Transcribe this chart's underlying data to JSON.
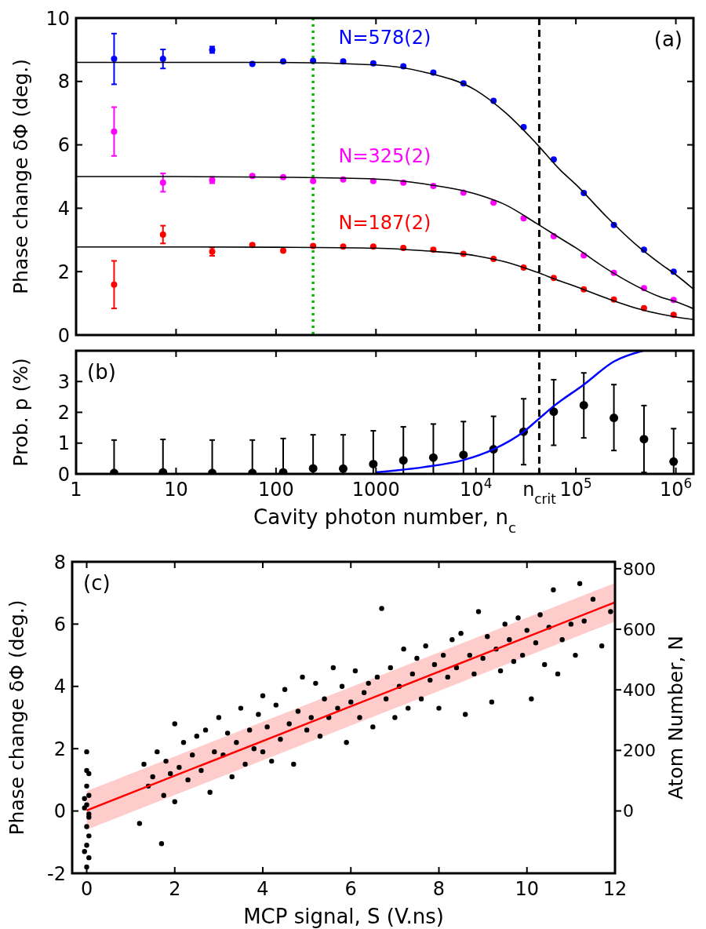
{
  "chart_data": [
    {
      "type": "scatter",
      "ylabel": "Phase change δΦ (deg.)",
      "annotations": [
        "(a)"
      ],
      "x": [
        2.4,
        7.4,
        23,
        58,
        118,
        235,
        470,
        940,
        1880,
        3750,
        7500,
        15000,
        30000,
        60000,
        120000,
        240000,
        480000,
        950000
      ],
      "xlim": [
        1,
        1500000
      ],
      "ylim": [
        0,
        10
      ],
      "log": "x",
      "xticks": [
        1,
        10,
        100,
        1000,
        10000,
        100000,
        1000000
      ],
      "yticks": [
        0,
        2,
        4,
        6,
        8,
        10
      ],
      "tick_labels": "y",
      "marker": "circle",
      "series": [
        {
          "name": "N=578(2)",
          "color": "#0000ff",
          "values": [
            8.71,
            8.71,
            9.0,
            8.55,
            8.63,
            8.65,
            8.63,
            8.57,
            8.48,
            8.28,
            7.94,
            7.39,
            6.56,
            5.54,
            4.48,
            3.47,
            2.69,
            2.0
          ],
          "errors": [
            0.8,
            0.3,
            0.1,
            null,
            null,
            null,
            null,
            null,
            null,
            null,
            null,
            null,
            null,
            null,
            null,
            null,
            null,
            null
          ]
        },
        {
          "name": "N=325(2)",
          "color": "#ff00ff",
          "values": [
            6.42,
            4.81,
            4.89,
            5.02,
            4.98,
            4.86,
            4.91,
            4.86,
            4.81,
            4.7,
            4.49,
            4.18,
            3.68,
            3.12,
            2.51,
            1.96,
            1.48,
            1.11
          ],
          "errors": [
            0.77,
            0.29,
            0.1,
            null,
            null,
            null,
            null,
            null,
            null,
            null,
            null,
            null,
            null,
            null,
            null,
            null,
            null,
            null
          ]
        },
        {
          "name": "N=187(2)",
          "color": "#ff0000",
          "values": [
            1.59,
            3.17,
            2.63,
            2.84,
            2.66,
            2.81,
            2.79,
            2.79,
            2.75,
            2.69,
            2.56,
            2.4,
            2.13,
            1.8,
            1.44,
            1.12,
            0.85,
            0.64
          ],
          "errors": [
            0.75,
            0.28,
            0.13,
            null,
            null,
            null,
            null,
            null,
            null,
            null,
            null,
            null,
            null,
            null,
            null,
            null,
            null,
            null
          ]
        },
        {
          "type": "line",
          "color": "#000000",
          "x": [
            1,
            10,
            100,
            1000,
            3000,
            10000,
            20000,
            40000,
            70000,
            100000,
            200000,
            400000,
            700000,
            1000000,
            1500000
          ],
          "marker": "none",
          "values": [
            8.6,
            8.6,
            8.6,
            8.52,
            8.3,
            7.72,
            7.0,
            6.05,
            5.2,
            4.75,
            3.75,
            2.85,
            2.25,
            1.9,
            1.45
          ]
        },
        {
          "type": "line",
          "color": "#000000",
          "x": [
            1,
            10,
            100,
            1000,
            3000,
            10000,
            20000,
            40000,
            70000,
            100000,
            200000,
            400000,
            700000,
            1000000,
            1500000
          ],
          "marker": "none",
          "values": [
            5.0,
            5.0,
            4.98,
            4.92,
            4.77,
            4.45,
            4.1,
            3.53,
            3.05,
            2.75,
            2.1,
            1.55,
            1.2,
            1.05,
            0.83
          ]
        },
        {
          "type": "line",
          "color": "#000000",
          "x": [
            1,
            10,
            100,
            1000,
            3000,
            10000,
            20000,
            40000,
            70000,
            100000,
            200000,
            400000,
            700000,
            1000000,
            1500000
          ],
          "marker": "none",
          "values": [
            2.78,
            2.78,
            2.77,
            2.74,
            2.66,
            2.5,
            2.3,
            1.99,
            1.7,
            1.53,
            1.17,
            0.85,
            0.66,
            0.57,
            0.49
          ]
        }
      ],
      "ref_lines": [
        {
          "axis": "x",
          "value": 235,
          "color": "#00bb00",
          "line_style": "dotted"
        },
        {
          "axis": "x",
          "value": 43000,
          "color": "#000000",
          "line_style": "dashed"
        }
      ]
    },
    {
      "type": "scatter",
      "ylabel": "Prob. p (%)",
      "xlabel": "Cavity photon number, n$_{c}$",
      "annotations": [
        "(b)"
      ],
      "x": [
        2.4,
        7.4,
        23,
        58,
        118,
        235,
        470,
        940,
        1880,
        3750,
        7500,
        15000,
        30000,
        60000,
        120000,
        240000,
        480000,
        950000
      ],
      "xlim": [
        1,
        1500000
      ],
      "ylim": [
        0,
        4
      ],
      "log": "x",
      "xticks": [
        1,
        10,
        100,
        1000,
        {
          "value": 10000,
          "label": "10$^{4}$"
        },
        {
          "value": 43000,
          "label": "n$_{crit}$"
        },
        {
          "value": 100000,
          "label": "10$^{5}$"
        },
        {
          "value": 1000000,
          "label": "10$^{6}$"
        }
      ],
      "yticks": [
        0,
        1,
        2,
        3
      ],
      "marker": "circle",
      "series": [
        {
          "color": "#000000",
          "values": [
            0.03,
            0.05,
            0.03,
            0.03,
            0.05,
            0.18,
            0.17,
            0.32,
            0.44,
            0.53,
            0.62,
            0.8,
            1.37,
            2.02,
            2.23,
            1.82,
            1.13,
            0.4
          ],
          "errors": [
            [
              0,
              1.1
            ],
            [
              0,
              1.12
            ],
            [
              0,
              1.1
            ],
            [
              0,
              1.1
            ],
            [
              0,
              1.15
            ],
            [
              0,
              1.27
            ],
            [
              0,
              1.27
            ],
            [
              0,
              1.4
            ],
            [
              0,
              1.53
            ],
            [
              0,
              1.62
            ],
            [
              0,
              1.7
            ],
            [
              0,
              1.87
            ],
            [
              0.3,
              2.44
            ],
            [
              0.93,
              3.06
            ],
            [
              1.17,
              3.28
            ],
            [
              0.76,
              2.9
            ],
            [
              0.05,
              2.22
            ],
            [
              0,
              1.47
            ]
          ]
        },
        {
          "type": "line",
          "marker": "none",
          "color": "#0000ff",
          "x": [
            1000,
            3000,
            7500,
            15000,
            30000,
            43000,
            60000,
            120000,
            240000,
            470000
          ],
          "values": [
            0.05,
            0.22,
            0.45,
            0.8,
            1.37,
            1.8,
            2.2,
            2.9,
            3.65,
            4.0
          ]
        }
      ],
      "ref_lines": [
        {
          "axis": "x",
          "value": 43000,
          "color": "#000000",
          "line_style": "dashed"
        }
      ]
    },
    {
      "type": "scatter",
      "ylabel": "Phase change δΦ (deg.)",
      "y2label": "Atom Number, N",
      "xlabel": "MCP signal, S (V.ns)",
      "annotations": [
        "(c)"
      ],
      "xlim": [
        -0.33,
        12
      ],
      "ylim": [
        -2,
        8
      ],
      "xticks": [
        0,
        2,
        4,
        6,
        8,
        10,
        12
      ],
      "yticks": [
        -2,
        0,
        2,
        4,
        6,
        8
      ],
      "y2lim": [
        -206,
        823
      ],
      "y2ticks": [
        0,
        200,
        400,
        600,
        800
      ],
      "marker": "circle",
      "series": [
        {
          "color": "#000000",
          "x": [
            0,
            0,
            0.05,
            0,
            0.05,
            0,
            -0.05,
            0.05,
            0,
            0.05,
            0,
            -0.05,
            0.05,
            0,
            -0.05,
            0.05,
            1.2,
            1.3,
            1.4,
            1.5,
            1.6,
            1.7,
            1.75,
            1.8,
            1.9,
            2.0,
            2.0,
            2.1,
            2.2,
            2.3,
            2.4,
            2.5,
            2.6,
            2.7,
            2.8,
            2.9,
            3.0,
            3.1,
            3.2,
            3.3,
            3.4,
            3.5,
            3.6,
            3.7,
            3.8,
            3.9,
            4.0,
            4.0,
            4.1,
            4.2,
            4.3,
            4.4,
            4.5,
            4.6,
            4.7,
            4.8,
            4.9,
            5.0,
            5.1,
            5.2,
            5.3,
            5.4,
            5.5,
            5.6,
            5.7,
            5.8,
            5.9,
            6.0,
            6.1,
            6.2,
            6.3,
            6.4,
            6.5,
            6.6,
            6.7,
            6.8,
            6.9,
            7.0,
            7.1,
            7.2,
            7.3,
            7.4,
            7.5,
            7.6,
            7.7,
            7.8,
            7.9,
            8.0,
            8.1,
            8.2,
            8.3,
            8.4,
            8.5,
            8.6,
            8.7,
            8.8,
            8.9,
            9.0,
            9.1,
            9.2,
            9.3,
            9.4,
            9.5,
            9.6,
            9.7,
            9.8,
            9.9,
            10.0,
            10.1,
            10.2,
            10.3,
            10.4,
            10.5,
            10.6,
            10.7,
            10.8,
            11.0,
            11.1,
            11.2,
            11.3,
            11.5,
            11.7,
            11.9
          ],
          "values": [
            1.9,
            1.3,
            1.2,
            0.8,
            0.5,
            0.2,
            0.1,
            -0.2,
            -0.5,
            -0.8,
            -1.1,
            -1.3,
            -1.5,
            -1.8,
            0.4,
            -0.1,
            -0.4,
            1.5,
            0.8,
            1.1,
            1.9,
            -1.05,
            0.5,
            1.6,
            1.2,
            2.8,
            0.3,
            1.4,
            2.2,
            1.0,
            1.8,
            2.4,
            1.3,
            2.6,
            0.6,
            1.9,
            3.0,
            1.8,
            2.5,
            1.1,
            2.2,
            3.3,
            1.5,
            2.6,
            2.0,
            3.1,
            3.7,
            1.9,
            2.7,
            1.6,
            3.4,
            2.3,
            3.9,
            2.8,
            1.5,
            3.2,
            4.3,
            2.6,
            3.0,
            4.1,
            2.4,
            3.6,
            3.0,
            4.6,
            3.3,
            4.0,
            2.2,
            3.5,
            4.5,
            3.0,
            3.8,
            4.1,
            2.7,
            4.3,
            6.5,
            3.6,
            4.6,
            3.0,
            4.0,
            5.2,
            3.3,
            4.4,
            4.9,
            3.6,
            5.3,
            4.2,
            4.7,
            3.3,
            5.0,
            4.3,
            5.5,
            4.6,
            5.7,
            3.1,
            5.0,
            4.4,
            6.4,
            4.9,
            5.6,
            3.5,
            5.2,
            4.5,
            6.0,
            5.5,
            4.8,
            6.2,
            5.0,
            5.8,
            3.6,
            5.4,
            6.3,
            4.7,
            5.9,
            7.1,
            4.4,
            5.5,
            6.0,
            5.0,
            7.3,
            6.1,
            6.8,
            5.3,
            6.4
          ]
        },
        {
          "type": "line",
          "marker": "none",
          "color": "#ff0000",
          "x": [
            0,
            12
          ],
          "values": [
            0.02,
            6.7
          ],
          "lower": [
            -0.6,
            6.08
          ],
          "upper": [
            0.64,
            7.32
          ]
        }
      ]
    }
  ]
}
